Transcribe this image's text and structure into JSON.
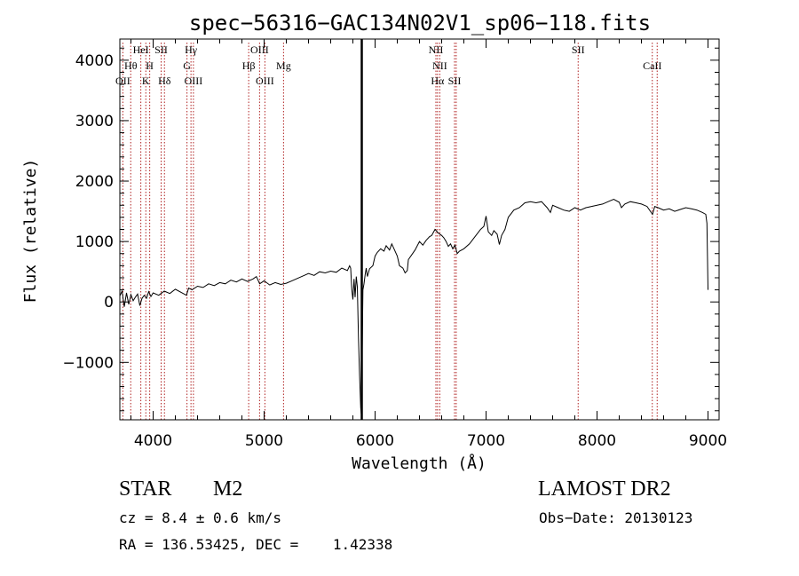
{
  "chart_data": {
    "type": "line",
    "title": "spec−56316−GAC134N02V1_sp06−118.fits",
    "xlabel": "Wavelength (Å)",
    "ylabel": "Flux (relative)",
    "xlim": [
      3700,
      9100
    ],
    "ylim": [
      -1950,
      4350
    ],
    "xticks": [
      4000,
      5000,
      6000,
      7000,
      8000,
      9000
    ],
    "xtick_labels": [
      "4000",
      "5000",
      "6000",
      "7000",
      "8000",
      "9000"
    ],
    "yticks": [
      -1000,
      0,
      1000,
      2000,
      3000,
      4000
    ],
    "ytick_labels": [
      "−1000",
      "0",
      "1000",
      "2000",
      "3000",
      "4000"
    ],
    "grid": false,
    "marker_line_x": 5880,
    "series": [
      {
        "points": [
          [
            3700,
            100
          ],
          [
            3720,
            180
          ],
          [
            3740,
            -80
          ],
          [
            3760,
            150
          ],
          [
            3780,
            -40
          ],
          [
            3800,
            120
          ],
          [
            3820,
            20
          ],
          [
            3840,
            80
          ],
          [
            3860,
            130
          ],
          [
            3880,
            -60
          ],
          [
            3900,
            60
          ],
          [
            3920,
            110
          ],
          [
            3940,
            60
          ],
          [
            3960,
            170
          ],
          [
            3980,
            90
          ],
          [
            4000,
            150
          ],
          [
            4050,
            110
          ],
          [
            4100,
            180
          ],
          [
            4150,
            140
          ],
          [
            4200,
            210
          ],
          [
            4250,
            160
          ],
          [
            4300,
            110
          ],
          [
            4320,
            230
          ],
          [
            4350,
            200
          ],
          [
            4400,
            260
          ],
          [
            4450,
            240
          ],
          [
            4500,
            300
          ],
          [
            4550,
            270
          ],
          [
            4600,
            320
          ],
          [
            4650,
            300
          ],
          [
            4700,
            360
          ],
          [
            4750,
            330
          ],
          [
            4800,
            380
          ],
          [
            4850,
            340
          ],
          [
            4900,
            380
          ],
          [
            4930,
            420
          ],
          [
            4960,
            300
          ],
          [
            5000,
            350
          ],
          [
            5050,
            280
          ],
          [
            5100,
            320
          ],
          [
            5150,
            290
          ],
          [
            5200,
            310
          ],
          [
            5250,
            350
          ],
          [
            5300,
            390
          ],
          [
            5350,
            430
          ],
          [
            5400,
            470
          ],
          [
            5450,
            440
          ],
          [
            5500,
            500
          ],
          [
            5550,
            480
          ],
          [
            5600,
            510
          ],
          [
            5650,
            490
          ],
          [
            5700,
            560
          ],
          [
            5750,
            520
          ],
          [
            5770,
            600
          ],
          [
            5780,
            560
          ],
          [
            5790,
            200
          ],
          [
            5800,
            40
          ],
          [
            5810,
            380
          ],
          [
            5820,
            80
          ],
          [
            5830,
            420
          ],
          [
            5840,
            250
          ],
          [
            5850,
            -600
          ],
          [
            5860,
            -1200
          ],
          [
            5870,
            -1750
          ],
          [
            5875,
            -1850
          ],
          [
            5880,
            -1400
          ],
          [
            5890,
            200
          ],
          [
            5900,
            300
          ],
          [
            5910,
            450
          ],
          [
            5920,
            560
          ],
          [
            5930,
            420
          ],
          [
            5950,
            550
          ],
          [
            5980,
            600
          ],
          [
            6000,
            760
          ],
          [
            6020,
            820
          ],
          [
            6050,
            880
          ],
          [
            6080,
            840
          ],
          [
            6100,
            930
          ],
          [
            6130,
            860
          ],
          [
            6150,
            960
          ],
          [
            6170,
            880
          ],
          [
            6200,
            760
          ],
          [
            6220,
            600
          ],
          [
            6250,
            560
          ],
          [
            6270,
            480
          ],
          [
            6290,
            520
          ],
          [
            6300,
            700
          ],
          [
            6330,
            780
          ],
          [
            6360,
            860
          ],
          [
            6400,
            1000
          ],
          [
            6430,
            940
          ],
          [
            6460,
            1020
          ],
          [
            6490,
            1080
          ],
          [
            6510,
            1100
          ],
          [
            6540,
            1200
          ],
          [
            6570,
            1140
          ],
          [
            6600,
            1100
          ],
          [
            6620,
            1060
          ],
          [
            6640,
            1000
          ],
          [
            6660,
            920
          ],
          [
            6680,
            960
          ],
          [
            6700,
            880
          ],
          [
            6720,
            940
          ],
          [
            6740,
            800
          ],
          [
            6760,
            840
          ],
          [
            6800,
            880
          ],
          [
            6850,
            960
          ],
          [
            6900,
            1080
          ],
          [
            6950,
            1200
          ],
          [
            6980,
            1250
          ],
          [
            7000,
            1420
          ],
          [
            7020,
            1160
          ],
          [
            7050,
            1100
          ],
          [
            7070,
            1180
          ],
          [
            7100,
            1120
          ],
          [
            7120,
            950
          ],
          [
            7140,
            1100
          ],
          [
            7170,
            1200
          ],
          [
            7200,
            1400
          ],
          [
            7250,
            1520
          ],
          [
            7300,
            1560
          ],
          [
            7350,
            1640
          ],
          [
            7400,
            1660
          ],
          [
            7450,
            1640
          ],
          [
            7500,
            1660
          ],
          [
            7550,
            1560
          ],
          [
            7580,
            1480
          ],
          [
            7600,
            1600
          ],
          [
            7650,
            1560
          ],
          [
            7700,
            1520
          ],
          [
            7750,
            1500
          ],
          [
            7800,
            1560
          ],
          [
            7850,
            1520
          ],
          [
            7900,
            1560
          ],
          [
            7950,
            1580
          ],
          [
            8000,
            1600
          ],
          [
            8050,
            1620
          ],
          [
            8100,
            1660
          ],
          [
            8150,
            1700
          ],
          [
            8200,
            1650
          ],
          [
            8220,
            1560
          ],
          [
            8250,
            1620
          ],
          [
            8300,
            1660
          ],
          [
            8350,
            1640
          ],
          [
            8400,
            1620
          ],
          [
            8450,
            1580
          ],
          [
            8500,
            1450
          ],
          [
            8520,
            1580
          ],
          [
            8550,
            1560
          ],
          [
            8600,
            1520
          ],
          [
            8650,
            1540
          ],
          [
            8700,
            1500
          ],
          [
            8750,
            1530
          ],
          [
            8800,
            1560
          ],
          [
            8850,
            1540
          ],
          [
            8900,
            1520
          ],
          [
            8950,
            1480
          ],
          [
            8980,
            1450
          ],
          [
            8990,
            1300
          ],
          [
            9000,
            200
          ]
        ]
      }
    ],
    "line_marks": [
      {
        "x": 3727,
        "labels": [
          "OII"
        ],
        "tier": 2
      },
      {
        "x": 3798,
        "labels": [
          "Hθ"
        ],
        "tier": 1
      },
      {
        "x": 3889,
        "labels": [
          "HeI"
        ],
        "tier": 0
      },
      {
        "x": 3934,
        "labels": [
          "K"
        ],
        "tier": 2
      },
      {
        "x": 3969,
        "labels": [
          "H"
        ],
        "tier": 1
      },
      {
        "x": 4072,
        "labels": [
          "SII"
        ],
        "tier": 0
      },
      {
        "x": 4102,
        "labels": [
          "Hδ"
        ],
        "tier": 2
      },
      {
        "x": 4305,
        "labels": [
          "G"
        ],
        "tier": 1
      },
      {
        "x": 4341,
        "labels": [
          "Hγ"
        ],
        "tier": 0
      },
      {
        "x": 4363,
        "labels": [
          "OIII"
        ],
        "tier": 2
      },
      {
        "x": 4861,
        "labels": [
          "Hβ"
        ],
        "tier": 1
      },
      {
        "x": 4959,
        "labels": [
          "OIII"
        ],
        "tier": 0
      },
      {
        "x": 5007,
        "labels": [
          "OIII"
        ],
        "tier": 2
      },
      {
        "x": 5175,
        "labels": [
          "Mg"
        ],
        "tier": 1
      },
      {
        "x": 6548,
        "labels": [
          "NII"
        ],
        "tier": 0
      },
      {
        "x": 6563,
        "labels": [
          "Hα"
        ],
        "tier": 2
      },
      {
        "x": 6583,
        "labels": [
          "NII"
        ],
        "tier": 1
      },
      {
        "x": 6716,
        "labels": [
          "SII"
        ],
        "tier": 2
      },
      {
        "x": 6731,
        "labels": [],
        "tier": 2
      },
      {
        "x": 7830,
        "labels": [
          "SII"
        ],
        "tier": 0
      },
      {
        "x": 8498,
        "labels": [
          "CaII"
        ],
        "tier": 1
      },
      {
        "x": 8542,
        "labels": [],
        "tier": 1
      }
    ],
    "colors": {
      "spectrum": "#000000",
      "line_marks": "#b02020",
      "axes": "#000000"
    }
  },
  "info": {
    "class_label": "STAR",
    "subclass": "M2",
    "survey": "LAMOST DR2",
    "cz": "cz = 8.4 ± 0.6 km/s",
    "obs_date": "Obs−Date: 20130123",
    "coords": "RA = 136.53425, DEC =    1.42338"
  }
}
